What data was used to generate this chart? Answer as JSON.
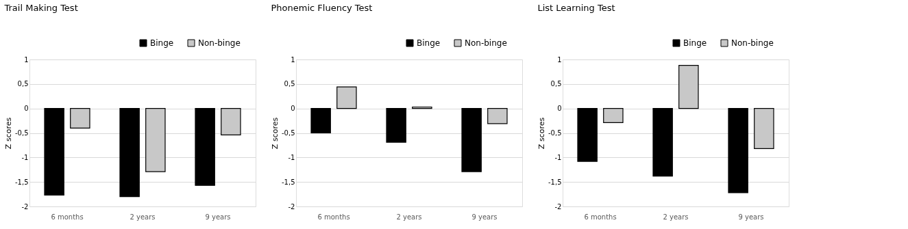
{
  "chart_data": [
    {
      "type": "bar",
      "title": "Trail Making Test",
      "ylabel": "Z scores",
      "categories": [
        "6 months",
        "2 years",
        "9 years"
      ],
      "series": [
        {
          "name": "Binge",
          "color": "#000000",
          "values": [
            -1.77,
            -1.8,
            -1.57
          ]
        },
        {
          "name": "Non-binge",
          "color": "#c8c8c8",
          "values": [
            -0.4,
            -1.29,
            -0.54
          ]
        }
      ],
      "ylim": [
        -2,
        1
      ],
      "yticks": [
        -2,
        {
          "value": -1.5,
          "label": "-1,5"
        },
        -1,
        {
          "value": -0.5,
          "label": "-0,5"
        },
        0,
        {
          "value": 0.5,
          "label": "0,5"
        },
        1
      ],
      "grid": "y",
      "legend": "top right"
    },
    {
      "type": "bar",
      "title": "Phonemic Fluency Test",
      "ylabel": "Z scores",
      "categories": [
        "6 months",
        "2 years",
        "9 years"
      ],
      "series": [
        {
          "name": "Binge",
          "color": "#000000",
          "values": [
            -0.5,
            -0.69,
            -1.29
          ]
        },
        {
          "name": "Non-binge",
          "color": "#c8c8c8",
          "values": [
            0.44,
            0.03,
            -0.31
          ]
        }
      ],
      "ylim": [
        -2,
        1
      ],
      "yticks": [
        -2,
        {
          "value": -1.5,
          "label": "-1,5"
        },
        -1,
        {
          "value": -0.5,
          "label": "-0,5"
        },
        0,
        {
          "value": 0.5,
          "label": "0,5"
        },
        1
      ],
      "grid": "y",
      "legend": "top right"
    },
    {
      "type": "bar",
      "title": "List Learning Test",
      "ylabel": "Z scores",
      "categories": [
        "6 months",
        "2 years",
        "9 years"
      ],
      "series": [
        {
          "name": "Binge",
          "color": "#000000",
          "values": [
            -1.08,
            -1.38,
            -1.72
          ]
        },
        {
          "name": "Non-binge",
          "color": "#c8c8c8",
          "values": [
            -0.29,
            0.88,
            -0.82
          ]
        }
      ],
      "ylim": [
        -2,
        1
      ],
      "yticks": [
        -2,
        {
          "value": -1.5,
          "label": "-1,5"
        },
        -1,
        {
          "value": -0.5,
          "label": "-0,5"
        },
        0,
        {
          "value": 0.5,
          "label": "0,5"
        },
        1
      ],
      "grid": "y",
      "legend": "top right"
    }
  ]
}
